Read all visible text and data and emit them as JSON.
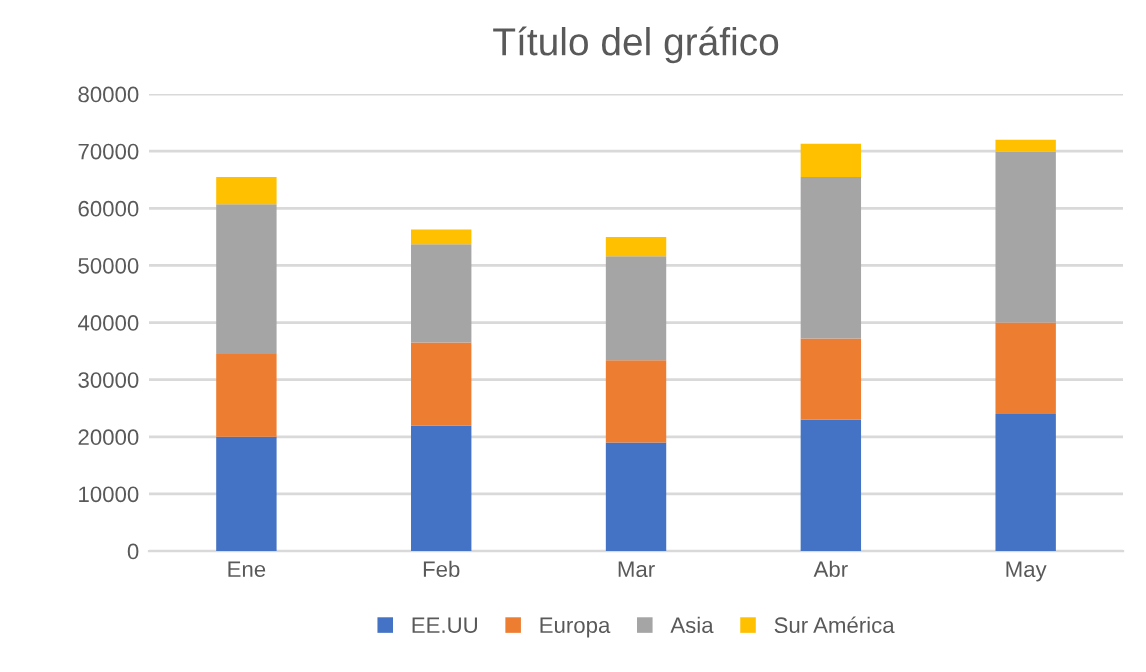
{
  "chart_data": {
    "type": "bar",
    "title": "Título del gráfico",
    "categories": [
      "Ene",
      "Feb",
      "Mar",
      "Abr",
      "May"
    ],
    "stacked": true,
    "ylim": [
      0,
      80000
    ],
    "yticks": [
      0,
      10000,
      20000,
      30000,
      40000,
      50000,
      60000,
      70000,
      80000
    ],
    "grid": "y",
    "legend": "bottom",
    "series": [
      {
        "name": "EE.UU",
        "color": "#4472c4",
        "values": [
          20000,
          22000,
          19000,
          23000,
          24000
        ]
      },
      {
        "name": "Europa",
        "color": "#ed7d31",
        "values": [
          14500,
          14500,
          14400,
          14200,
          16000
        ]
      },
      {
        "name": "Asia",
        "color": "#a5a5a5",
        "values": [
          26200,
          17200,
          18200,
          28300,
          29900
        ]
      },
      {
        "name": "Sur América",
        "color": "#ffc000",
        "values": [
          4800,
          2600,
          3400,
          5800,
          2100
        ]
      }
    ]
  }
}
